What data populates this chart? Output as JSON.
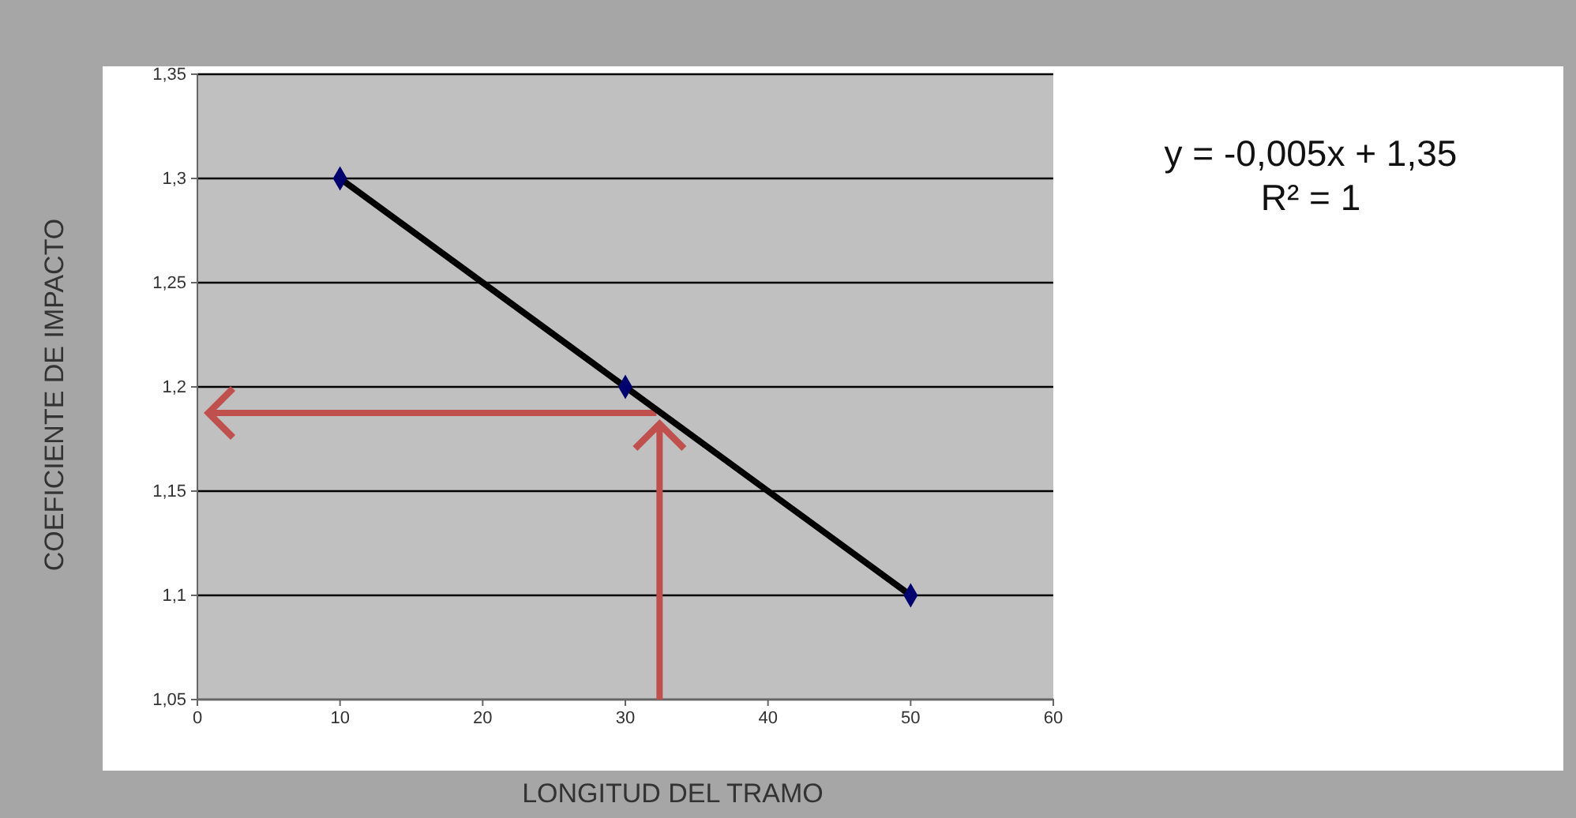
{
  "chart_data": {
    "type": "line",
    "xlabel": "LONGITUD DEL TRAMO",
    "ylabel": "COEFICIENTE DE IMPACTO",
    "x": [
      10,
      30,
      50
    ],
    "series": [
      {
        "color": "#000000",
        "values": [
          1.3,
          1.2,
          1.1
        ]
      }
    ],
    "xlim": [
      0,
      60
    ],
    "xticks": [
      0,
      10,
      20,
      30,
      40,
      50,
      60
    ],
    "ylim": [
      1.05,
      1.35
    ],
    "yticks": [
      {
        "value": 1.05,
        "label": "1,05"
      },
      {
        "value": 1.1,
        "label": "1,1"
      },
      {
        "value": 1.15,
        "label": "1,15"
      },
      {
        "value": 1.2,
        "label": "1,2"
      },
      {
        "value": 1.25,
        "label": "1,25"
      },
      {
        "value": 1.3,
        "label": "1,3"
      },
      {
        "value": 1.35,
        "label": "1,35"
      }
    ],
    "grid": "y",
    "marker": "diamond",
    "line_style": "solid",
    "annotations": [
      "y = -0,005x + 1,35",
      "R² = 1"
    ]
  }
}
